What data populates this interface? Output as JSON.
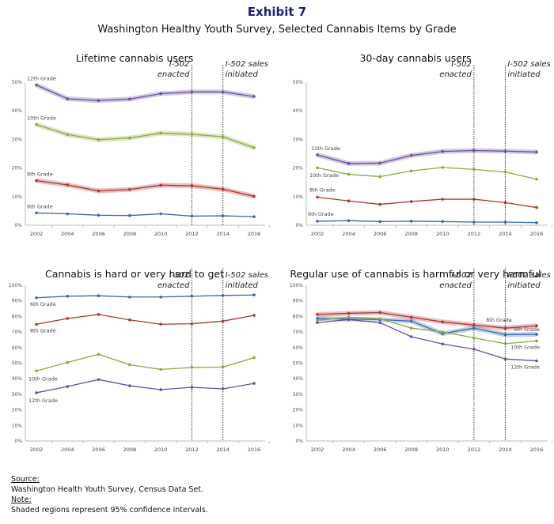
{
  "exhibit": "Exhibit 7",
  "subtitle": "Washington Healthy Youth Survey, Selected Cannabis Items by Grade",
  "colors": {
    "12th Grade": "#6b4fa0",
    "10th Grade": "#8aab3c",
    "8th Grade": "#b23434",
    "6th Grade": "#3a67ad"
  },
  "annotations": [
    {
      "x": 2012,
      "label1": "I-502",
      "label2": "enacted"
    },
    {
      "x": 2014,
      "label1": "I-502 sales",
      "label2": "initiated"
    }
  ],
  "chart_data": [
    {
      "type": "line",
      "title": "Lifetime cannabis users",
      "x": [
        2002,
        2004,
        2006,
        2008,
        2010,
        2012,
        2014,
        2016
      ],
      "ylim": [
        0,
        50
      ],
      "yticks": [
        "0%",
        "10%",
        "20%",
        "30%",
        "40%",
        "50%"
      ],
      "grid": false,
      "series": [
        {
          "name": "12th Grade",
          "values": [
            49,
            44.2,
            43.6,
            44.1,
            46,
            46.6,
            46.6,
            45
          ],
          "ci_band": true
        },
        {
          "name": "10th Grade",
          "values": [
            35.2,
            31.7,
            29.9,
            30.5,
            32.2,
            31.8,
            30.9,
            27.1
          ],
          "ci_band": true
        },
        {
          "name": "8th Grade",
          "values": [
            15.6,
            14.1,
            12,
            12.5,
            14,
            13.8,
            12.6,
            10.1
          ],
          "ci_band": true
        },
        {
          "name": "6th Grade",
          "values": [
            4.3,
            4,
            3.5,
            3.4,
            4,
            3.2,
            3.3,
            3
          ],
          "ci_band": false
        }
      ]
    },
    {
      "type": "line",
      "title": "30-day cannabis users",
      "x": [
        2002,
        2004,
        2006,
        2008,
        2010,
        2012,
        2014,
        2016
      ],
      "ylim": [
        0,
        50
      ],
      "yticks": [
        "0%",
        "10%",
        "20%",
        "30%",
        "40%",
        "50%"
      ],
      "grid": false,
      "series": [
        {
          "name": "12th Grade",
          "values": [
            24.6,
            21.6,
            21.7,
            24.4,
            25.8,
            26.1,
            25.9,
            25.6
          ],
          "ci_band": true
        },
        {
          "name": "10th Grade",
          "values": [
            20.1,
            17.8,
            17,
            19,
            20.2,
            19.5,
            18.6,
            16.1
          ],
          "ci_band": false
        },
        {
          "name": "8th Grade",
          "values": [
            9.8,
            8.5,
            7.3,
            8.3,
            9.1,
            9.1,
            7.9,
            6.2
          ],
          "ci_band": false
        },
        {
          "name": "6th Grade",
          "values": [
            1.4,
            1.6,
            1.3,
            1.4,
            1.3,
            1.1,
            1.1,
            0.9
          ],
          "ci_band": false
        }
      ]
    },
    {
      "type": "line",
      "title": "Cannabis is hard or very hard to get",
      "x": [
        2002,
        2004,
        2006,
        2008,
        2010,
        2012,
        2014,
        2016
      ],
      "ylim": [
        0,
        100
      ],
      "yticks": [
        "0%",
        "10%",
        "20%",
        "30%",
        "40%",
        "50%",
        "60%",
        "70%",
        "80%",
        "90%",
        "100%"
      ],
      "grid": false,
      "series": [
        {
          "name": "6th Grade",
          "values": [
            92,
            93,
            93.3,
            92.5,
            92.5,
            93,
            93.5,
            93.8
          ],
          "ci_band": false
        },
        {
          "name": "8th Grade",
          "values": [
            75,
            78.7,
            81.3,
            77.8,
            75,
            75.3,
            77,
            80.7
          ],
          "ci_band": false
        },
        {
          "name": "10th Grade",
          "values": [
            45,
            50.5,
            55.7,
            49,
            46,
            47.2,
            47.5,
            53.5
          ],
          "ci_band": false
        },
        {
          "name": "12th Grade",
          "values": [
            31,
            35,
            39.5,
            35.5,
            33,
            34.5,
            33.5,
            37
          ],
          "ci_band": false
        }
      ]
    },
    {
      "type": "line",
      "title": "Regular use of cannabis is harmful or very harmful",
      "x": [
        2002,
        2004,
        2006,
        2008,
        2010,
        2012,
        2014,
        2016
      ],
      "ylim": [
        0,
        100
      ],
      "yticks": [
        "0%",
        "10%",
        "20%",
        "30%",
        "40%",
        "50%",
        "60%",
        "70%",
        "80%",
        "90%",
        "100%"
      ],
      "grid": false,
      "series": [
        {
          "name": "8th Grade",
          "values": [
            81.3,
            82,
            82.5,
            79.5,
            76.5,
            74.5,
            72.5,
            74
          ],
          "ci_band": true
        },
        {
          "name": "6th Grade",
          "values": [
            78.7,
            78.3,
            78,
            77,
            69,
            72.5,
            68.3,
            68.5
          ],
          "ci_band": true
        },
        {
          "name": "10th Grade",
          "values": [
            77.5,
            79.5,
            78.5,
            72.5,
            70,
            66.3,
            62.5,
            64.3
          ],
          "ci_band": false
        },
        {
          "name": "12th Grade",
          "values": [
            76,
            78,
            76,
            67,
            62.3,
            59,
            52.7,
            51.5
          ],
          "ci_band": false
        }
      ]
    }
  ],
  "footer": {
    "source_label": "Source:",
    "source": "Washington Health Youth Survey, Census Data Set.",
    "note_label": "Note:",
    "note": "Shaded regions represent 95% confidence intervals."
  }
}
